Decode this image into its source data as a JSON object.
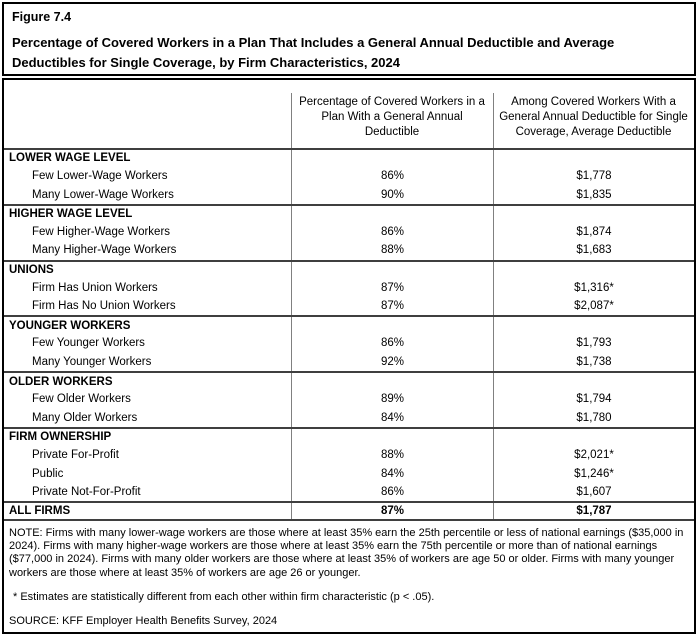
{
  "header": {
    "figure_label": "Figure 7.4",
    "title": "Percentage of Covered Workers in a Plan That Includes a General Annual Deductible and Average Deductibles for Single Coverage, by Firm Characteristics, 2024"
  },
  "table": {
    "columns": {
      "col2_label": "Percentage of Covered Workers in a Plan With a General Annual Deductible",
      "col3_label": "Among Covered Workers With a General Annual Deductible for Single Coverage, Average Deductible"
    },
    "sections": [
      {
        "label": "LOWER WAGE LEVEL",
        "rows": [
          {
            "label": "Few Lower-Wage Workers",
            "pct": "86%",
            "ded": "$1,778"
          },
          {
            "label": "Many Lower-Wage Workers",
            "pct": "90%",
            "ded": "$1,835"
          }
        ]
      },
      {
        "label": "HIGHER WAGE LEVEL",
        "rows": [
          {
            "label": "Few Higher-Wage Workers",
            "pct": "86%",
            "ded": "$1,874"
          },
          {
            "label": "Many Higher-Wage Workers",
            "pct": "88%",
            "ded": "$1,683"
          }
        ]
      },
      {
        "label": "UNIONS",
        "rows": [
          {
            "label": "Firm Has Union Workers",
            "pct": "87%",
            "ded": "$1,316*"
          },
          {
            "label": "Firm Has No Union Workers",
            "pct": "87%",
            "ded": "$2,087*"
          }
        ]
      },
      {
        "label": "YOUNGER WORKERS",
        "rows": [
          {
            "label": "Few Younger Workers",
            "pct": "86%",
            "ded": "$1,793"
          },
          {
            "label": "Many Younger Workers",
            "pct": "92%",
            "ded": "$1,738"
          }
        ]
      },
      {
        "label": "OLDER WORKERS",
        "rows": [
          {
            "label": "Few Older Workers",
            "pct": "89%",
            "ded": "$1,794"
          },
          {
            "label": "Many Older Workers",
            "pct": "84%",
            "ded": "$1,780"
          }
        ]
      },
      {
        "label": "FIRM OWNERSHIP",
        "rows": [
          {
            "label": "Private For-Profit",
            "pct": "88%",
            "ded": "$2,021*"
          },
          {
            "label": "Public",
            "pct": "84%",
            "ded": "$1,246*"
          },
          {
            "label": "Private Not-For-Profit",
            "pct": "86%",
            "ded": "$1,607"
          }
        ]
      }
    ],
    "all_firms": {
      "label": "ALL FIRMS",
      "pct": "87%",
      "ded": "$1,787"
    }
  },
  "notes": {
    "note": "NOTE: Firms with many lower-wage workers are those where at least 35% earn the 25th percentile or less of national earnings ($35,000 in 2024). Firms with many higher-wage workers are those where at least 35% earn the 75th percentile or more than of national earnings ($77,000 in 2024). Firms with many older workers are those where at least 35% of workers are age 50 or older. Firms with many younger workers are those where at least 35% of workers are age 26 or younger.",
    "footnote": "* Estimates are statistically different from each other within firm characteristic (p < .05).",
    "source": "SOURCE: KFF Employer Health Benefits Survey, 2024"
  },
  "colors": {
    "background": "#ffffff",
    "text": "#000000",
    "outer_border": "#000000",
    "section_border": "#3f3f3f",
    "column_divider": "#808080"
  }
}
